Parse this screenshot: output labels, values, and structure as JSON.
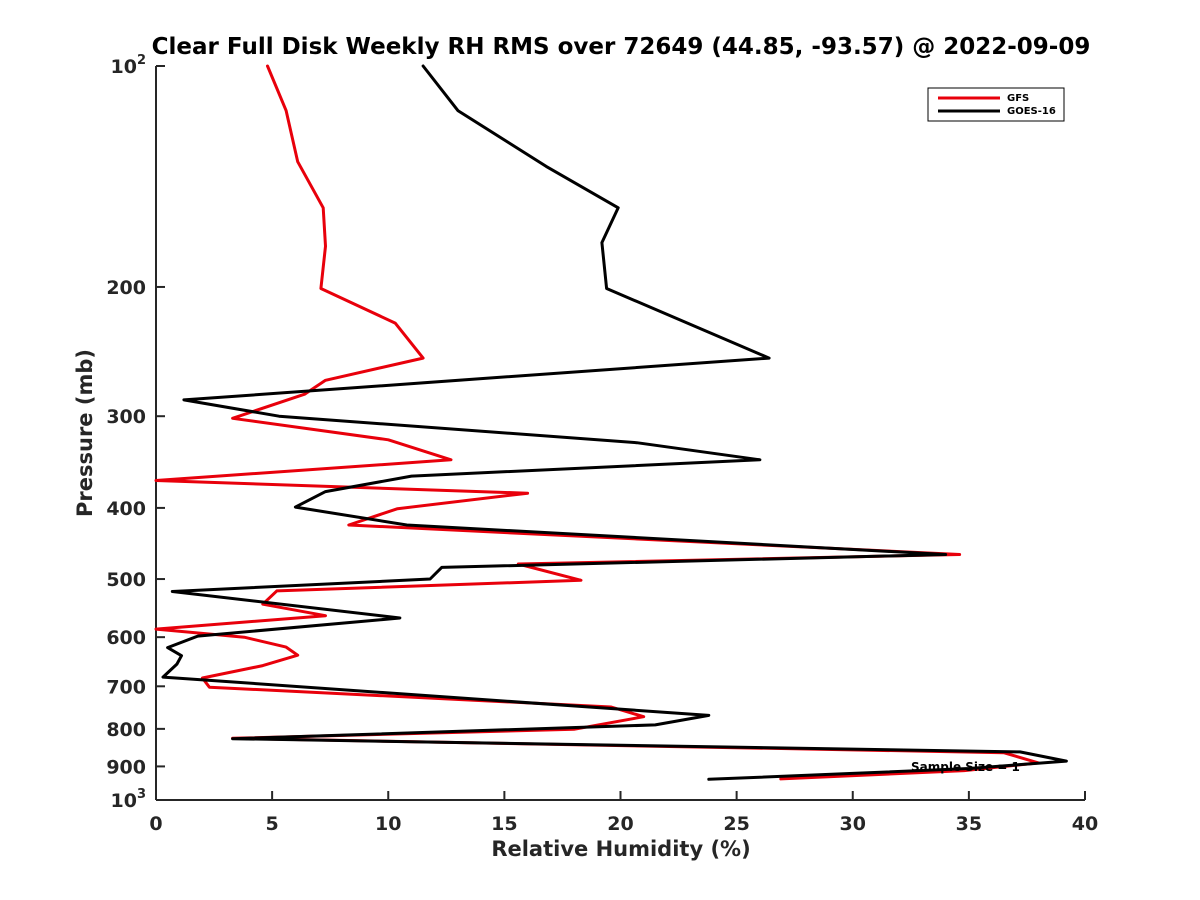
{
  "chart_data": {
    "type": "line",
    "title": "Clear Full Disk Weekly RH RMS over 72649 (44.85, -93.57) @ 2022-09-09",
    "xlabel": "Relative Humidity (%)",
    "ylabel": "Pressure (mb)",
    "xlim": [
      0,
      40
    ],
    "ylim": [
      100,
      1000
    ],
    "yscale": "log",
    "yreversed": true,
    "x_ticks": [
      0,
      5,
      10,
      15,
      20,
      25,
      30,
      35,
      40
    ],
    "y_ticks": [
      {
        "value": 100,
        "label": "10",
        "sup": "2"
      },
      {
        "value": 200,
        "label": "200"
      },
      {
        "value": 300,
        "label": "300"
      },
      {
        "value": 400,
        "label": "400"
      },
      {
        "value": 500,
        "label": "500"
      },
      {
        "value": 600,
        "label": "600"
      },
      {
        "value": 700,
        "label": "700"
      },
      {
        "value": 800,
        "label": "800"
      },
      {
        "value": 900,
        "label": "900"
      },
      {
        "value": 1000,
        "label": "10",
        "sup": "3"
      }
    ],
    "legend_position": "top-right",
    "grid": false,
    "annotation": "Sample Size = 1",
    "series": [
      {
        "name": "GFS",
        "color": "#e8000b",
        "points": [
          [
            4.8,
            100
          ],
          [
            5.6,
            115
          ],
          [
            6.1,
            135
          ],
          [
            7.2,
            156
          ],
          [
            7.3,
            176
          ],
          [
            7.1,
            201
          ],
          [
            10.3,
            224
          ],
          [
            11.5,
            250
          ],
          [
            7.3,
            268
          ],
          [
            6.4,
            280
          ],
          [
            3.3,
            302
          ],
          [
            10.0,
            323
          ],
          [
            12.7,
            344
          ],
          [
            0.0,
            367
          ],
          [
            16.0,
            382
          ],
          [
            10.4,
            401
          ],
          [
            8.3,
            422
          ],
          [
            34.6,
            463
          ],
          [
            15.6,
            477
          ],
          [
            18.3,
            502
          ],
          [
            5.2,
            519
          ],
          [
            4.6,
            541
          ],
          [
            7.3,
            561
          ],
          [
            0.0,
            585
          ],
          [
            3.8,
            600
          ],
          [
            5.6,
            619
          ],
          [
            6.1,
            635
          ],
          [
            4.6,
            656
          ],
          [
            2.0,
            682
          ],
          [
            2.3,
            702
          ],
          [
            19.6,
            747
          ],
          [
            21.0,
            770
          ],
          [
            18.0,
            801
          ],
          [
            3.3,
            824
          ],
          [
            36.5,
            862
          ],
          [
            38.0,
            890
          ],
          [
            34.8,
            912
          ],
          [
            26.9,
            936
          ]
        ]
      },
      {
        "name": "GOES-16",
        "color": "#000000",
        "points": [
          [
            11.5,
            100
          ],
          [
            13.0,
            115
          ],
          [
            16.8,
            137
          ],
          [
            19.9,
            156
          ],
          [
            19.2,
            174
          ],
          [
            19.4,
            201
          ],
          [
            26.4,
            250
          ],
          [
            1.2,
            285
          ],
          [
            5.3,
            300
          ],
          [
            20.7,
            326
          ],
          [
            26.0,
            344
          ],
          [
            11.0,
            362
          ],
          [
            7.3,
            380
          ],
          [
            6.0,
            399
          ],
          [
            10.8,
            422
          ],
          [
            34.0,
            463
          ],
          [
            12.3,
            482
          ],
          [
            11.8,
            500
          ],
          [
            0.7,
            520
          ],
          [
            10.5,
            565
          ],
          [
            1.8,
            598
          ],
          [
            0.5,
            620
          ],
          [
            1.1,
            636
          ],
          [
            0.9,
            653
          ],
          [
            0.3,
            680
          ],
          [
            23.8,
            767
          ],
          [
            21.5,
            790
          ],
          [
            3.3,
            825
          ],
          [
            37.2,
            860
          ],
          [
            39.2,
            885
          ],
          [
            35.0,
            906
          ],
          [
            30.0,
            920
          ],
          [
            23.8,
            937
          ]
        ]
      }
    ]
  }
}
